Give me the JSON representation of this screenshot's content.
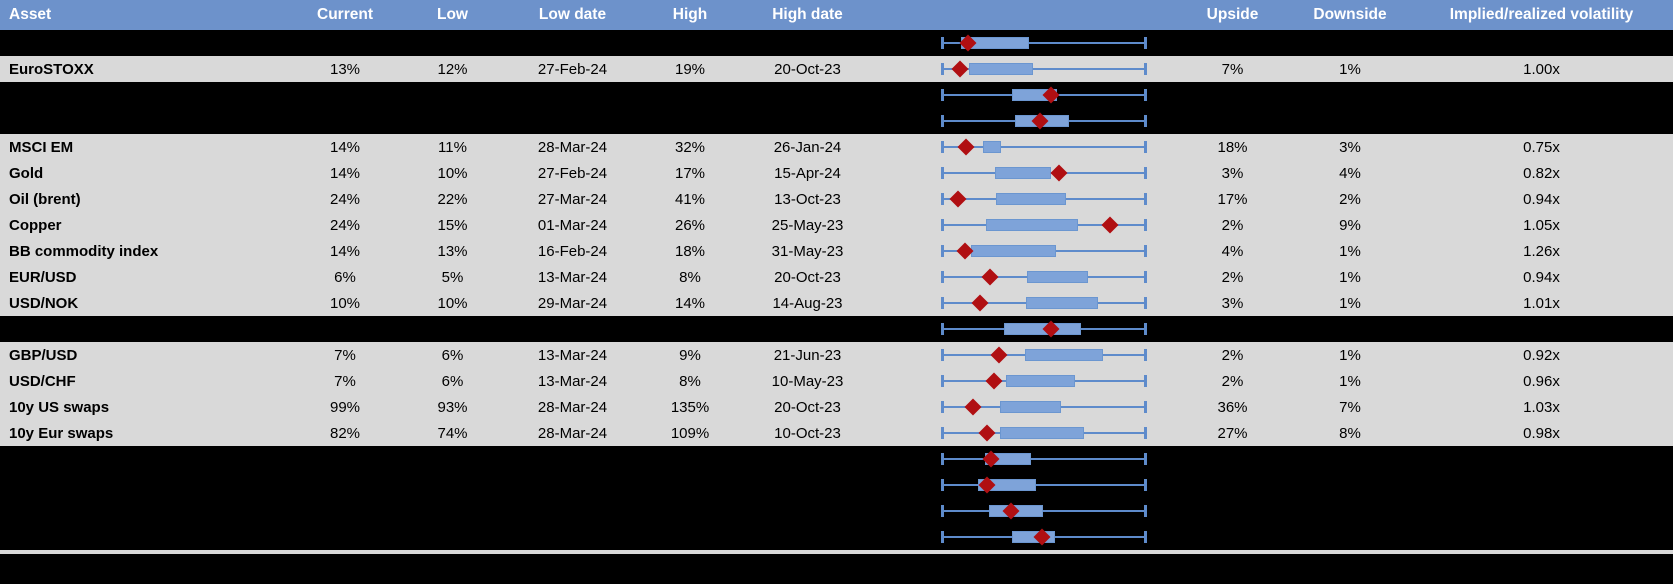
{
  "header": {
    "columns": [
      "Asset",
      "Current",
      "Low",
      "Low date",
      "High",
      "High date",
      "",
      "Upside",
      "Downside",
      "Implied/realized volatility"
    ]
  },
  "colors": {
    "header_bg": "#6D92CB",
    "row_gray": "#D9D9D9",
    "row_black": "#000000",
    "box_fill": "#7EA3D9",
    "whisker_blue": "#5E8BCB",
    "marker_red": "#B00F12"
  },
  "rows": [
    {
      "kind": "hidden",
      "asset": "",
      "current": "",
      "low": "",
      "low_date": "",
      "high": "",
      "high_date": "",
      "upside": "",
      "downside": "",
      "implied": "",
      "box": {
        "lo": 0,
        "q1": 0.1,
        "q3": 0.43,
        "hi": 1,
        "d": 0.135
      }
    },
    {
      "kind": "data",
      "asset": "EuroSTOXX",
      "current": "13%",
      "low": "12%",
      "low_date": "27-Feb-24",
      "high": "19%",
      "high_date": "20-Oct-23",
      "upside": "7%",
      "downside": "1%",
      "implied": "1.00x",
      "box": {
        "lo": 0,
        "q1": 0.139,
        "q3": 0.449,
        "hi": 1,
        "d": 0.096
      }
    },
    {
      "kind": "hidden",
      "asset": "",
      "current": "",
      "low": "",
      "low_date": "",
      "high": "",
      "high_date": "",
      "upside": "",
      "downside": "",
      "implied": "",
      "box": {
        "lo": 0,
        "q1": 0.346,
        "q3": 0.567,
        "hi": 1,
        "d": 0.534
      }
    },
    {
      "kind": "hidden",
      "asset": "",
      "current": "",
      "low": "",
      "low_date": "",
      "high": "",
      "high_date": "",
      "upside": "",
      "downside": "",
      "implied": "",
      "box": {
        "lo": 0,
        "q1": 0.359,
        "q3": 0.624,
        "hi": 1,
        "d": 0.482
      }
    },
    {
      "kind": "data",
      "asset": "MSCI EM",
      "current": "14%",
      "low": "11%",
      "low_date": "28-Mar-24",
      "high": "32%",
      "high_date": "26-Jan-24",
      "upside": "18%",
      "downside": "3%",
      "implied": "0.75x",
      "box": {
        "lo": 0,
        "q1": 0.207,
        "q3": 0.294,
        "hi": 1,
        "d": 0.123
      }
    },
    {
      "kind": "data",
      "asset": "Gold",
      "current": "14%",
      "low": "10%",
      "low_date": "27-Feb-24",
      "high": "17%",
      "high_date": "15-Apr-24",
      "upside": "3%",
      "downside": "4%",
      "implied": "0.82x",
      "box": {
        "lo": 0,
        "q1": 0.265,
        "q3": 0.539,
        "hi": 1,
        "d": 0.575
      }
    },
    {
      "kind": "data",
      "asset": "Oil (brent)",
      "current": "24%",
      "low": "22%",
      "low_date": "27-Mar-24",
      "high": "41%",
      "high_date": "13-Oct-23",
      "upside": "17%",
      "downside": "2%",
      "implied": "0.94x",
      "box": {
        "lo": 0,
        "q1": 0.27,
        "q3": 0.608,
        "hi": 1,
        "d": 0.085
      }
    },
    {
      "kind": "data",
      "asset": "Copper",
      "current": "24%",
      "low": "15%",
      "low_date": "01-Mar-24",
      "high": "26%",
      "high_date": "25-May-23",
      "upside": "2%",
      "downside": "9%",
      "implied": "1.05x",
      "box": {
        "lo": 0,
        "q1": 0.219,
        "q3": 0.668,
        "hi": 1,
        "d": 0.825
      }
    },
    {
      "kind": "data",
      "asset": "BB commodity index",
      "current": "14%",
      "low": "13%",
      "low_date": "16-Feb-24",
      "high": "18%",
      "high_date": "31-May-23",
      "upside": "4%",
      "downside": "1%",
      "implied": "1.26x",
      "box": {
        "lo": 0,
        "q1": 0.15,
        "q3": 0.559,
        "hi": 1,
        "d": 0.118
      }
    },
    {
      "kind": "data",
      "asset": "EUR/USD",
      "current": "6%",
      "low": "5%",
      "low_date": "13-Mar-24",
      "high": "8%",
      "high_date": "20-Oct-23",
      "upside": "2%",
      "downside": "1%",
      "implied": "0.94x",
      "box": {
        "lo": 0,
        "q1": 0.42,
        "q3": 0.714,
        "hi": 1,
        "d": 0.24
      }
    },
    {
      "kind": "data",
      "asset": "USD/NOK",
      "current": "10%",
      "low": "10%",
      "low_date": "29-Mar-24",
      "high": "14%",
      "high_date": "14-Aug-23",
      "upside": "3%",
      "downside": "1%",
      "implied": "1.01x",
      "box": {
        "lo": 0,
        "q1": 0.417,
        "q3": 0.763,
        "hi": 1,
        "d": 0.191
      }
    },
    {
      "kind": "hidden",
      "asset": "",
      "current": "",
      "low": "",
      "low_date": "",
      "high": "",
      "high_date": "",
      "upside": "",
      "downside": "",
      "implied": "",
      "box": {
        "lo": 0,
        "q1": 0.31,
        "q3": 0.681,
        "hi": 1,
        "d": 0.535
      }
    },
    {
      "kind": "data",
      "asset": "GBP/USD",
      "current": "7%",
      "low": "6%",
      "low_date": "13-Mar-24",
      "high": "9%",
      "high_date": "21-Jun-23",
      "upside": "2%",
      "downside": "1%",
      "implied": "0.92x",
      "box": {
        "lo": 0,
        "q1": 0.412,
        "q3": 0.787,
        "hi": 1,
        "d": 0.284
      }
    },
    {
      "kind": "data",
      "asset": "USD/CHF",
      "current": "7%",
      "low": "6%",
      "low_date": "13-Mar-24",
      "high": "8%",
      "high_date": "10-May-23",
      "upside": "2%",
      "downside": "1%",
      "implied": "0.96x",
      "box": {
        "lo": 0,
        "q1": 0.317,
        "q3": 0.652,
        "hi": 1,
        "d": 0.261
      }
    },
    {
      "kind": "data",
      "asset": "10y US swaps",
      "current": "99%",
      "low": "93%",
      "low_date": "28-Mar-24",
      "high": "135%",
      "high_date": "20-Oct-23",
      "upside": "36%",
      "downside": "7%",
      "implied": "1.03x",
      "box": {
        "lo": 0,
        "q1": 0.289,
        "q3": 0.587,
        "hi": 1,
        "d": 0.158
      }
    },
    {
      "kind": "data",
      "asset": "10y Eur swaps",
      "current": "82%",
      "low": "74%",
      "low_date": "28-Mar-24",
      "high": "109%",
      "high_date": "10-Oct-23",
      "upside": "27%",
      "downside": "8%",
      "implied": "0.98x",
      "box": {
        "lo": 0,
        "q1": 0.289,
        "q3": 0.698,
        "hi": 1,
        "d": 0.224
      }
    },
    {
      "kind": "hidden",
      "asset": "",
      "current": "",
      "low": "",
      "low_date": "",
      "high": "",
      "high_date": "",
      "upside": "",
      "downside": "",
      "implied": "",
      "box": {
        "lo": 0,
        "q1": 0.216,
        "q3": 0.44,
        "hi": 1,
        "d": 0.246
      }
    },
    {
      "kind": "hidden",
      "asset": "",
      "current": "",
      "low": "",
      "low_date": "",
      "high": "",
      "high_date": "",
      "upside": "",
      "downside": "",
      "implied": "",
      "box": {
        "lo": 0,
        "q1": 0.18,
        "q3": 0.464,
        "hi": 1,
        "d": 0.224
      }
    },
    {
      "kind": "hidden",
      "asset": "",
      "current": "",
      "low": "",
      "low_date": "",
      "high": "",
      "high_date": "",
      "upside": "",
      "downside": "",
      "implied": "",
      "box": {
        "lo": 0,
        "q1": 0.237,
        "q3": 0.498,
        "hi": 1,
        "d": 0.344
      }
    },
    {
      "kind": "hidden",
      "asset": "",
      "current": "",
      "low": "",
      "low_date": "",
      "high": "",
      "high_date": "",
      "upside": "",
      "downside": "",
      "implied": "",
      "box": {
        "lo": 0,
        "q1": 0.347,
        "q3": 0.554,
        "hi": 1,
        "d": 0.493
      }
    }
  ]
}
